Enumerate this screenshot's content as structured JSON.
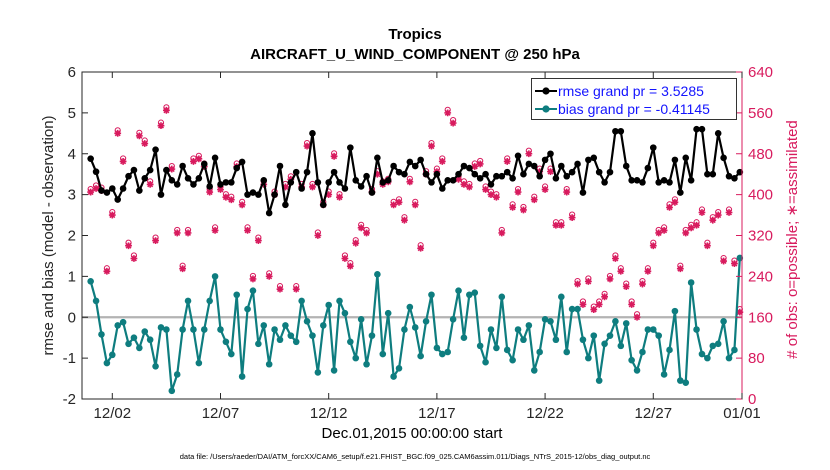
{
  "chart_data": {
    "type": "line",
    "title": "Tropics",
    "subtitle": "AIRCRAFT_U_WIND_COMPONENT @ 250 hPa",
    "xlabel": "Dec.01,2015 00:00:00 start",
    "ylabel_left": "rmse and bias (model - observation)",
    "ylabel_right": "# of obs: o=possible; ∗=assimilated",
    "xlim": [
      0.6,
      31.1
    ],
    "ylim_left": [
      -2,
      6
    ],
    "ylim_right": [
      0,
      640
    ],
    "x_ticks": [
      {
        "x": 2,
        "label": "12/02"
      },
      {
        "x": 7,
        "label": "12/07"
      },
      {
        "x": 12,
        "label": "12/12"
      },
      {
        "x": 17,
        "label": "12/17"
      },
      {
        "x": 22,
        "label": "12/22"
      },
      {
        "x": 27,
        "label": "12/27"
      },
      {
        "x": 32,
        "label": "01/01"
      }
    ],
    "y_ticks_left": [
      "6",
      "5",
      "4",
      "3",
      "2",
      "1",
      "0",
      "-1",
      "-2"
    ],
    "y_ticks_right": [
      "640",
      "560",
      "480",
      "400",
      "320",
      "240",
      "160",
      "80",
      "0"
    ],
    "legend": [
      "rmse grand pr = 3.5285",
      "bias grand pr = -0.41145"
    ],
    "colors": {
      "rmse": "#000000",
      "bias": "#0e7d7f",
      "obs": "#d81b5e",
      "zero_line": "#b3b3b3"
    },
    "x": [
      1.0,
      1.25,
      1.5,
      1.75,
      2.0,
      2.25,
      2.5,
      2.75,
      3.0,
      3.25,
      3.5,
      3.75,
      4.0,
      4.25,
      4.5,
      4.75,
      5.0,
      5.25,
      5.5,
      5.75,
      6.0,
      6.25,
      6.5,
      6.75,
      7.0,
      7.25,
      7.5,
      7.75,
      8.0,
      8.25,
      8.5,
      8.75,
      9.0,
      9.25,
      9.5,
      9.75,
      10.0,
      10.25,
      10.5,
      10.75,
      11.0,
      11.25,
      11.5,
      11.75,
      12.0,
      12.25,
      12.5,
      12.75,
      13.0,
      13.25,
      13.5,
      13.75,
      14.0,
      14.25,
      14.5,
      14.75,
      15.0,
      15.25,
      15.5,
      15.75,
      16.0,
      16.25,
      16.5,
      16.75,
      17.0,
      17.25,
      17.5,
      17.75,
      18.0,
      18.25,
      18.5,
      18.75,
      19.0,
      19.25,
      19.5,
      19.75,
      20.0,
      20.25,
      20.5,
      20.75,
      21.0,
      21.25,
      21.5,
      21.75,
      22.0,
      22.25,
      22.5,
      22.75,
      23.0,
      23.25,
      23.5,
      23.75,
      24.0,
      24.25,
      24.5,
      24.75,
      25.0,
      25.25,
      25.5,
      25.75,
      26.0,
      26.25,
      26.5,
      26.75,
      27.0,
      27.25,
      27.5,
      27.75,
      28.0,
      28.25,
      28.5,
      28.75,
      29.0,
      29.25,
      29.5,
      29.75,
      30.0,
      30.25,
      30.5,
      30.75,
      31.0
    ],
    "series": [
      {
        "name": "rmse grand pr = 3.5285",
        "axis": "left",
        "values": [
          3.88,
          3.56,
          3.1,
          3.05,
          3.15,
          2.88,
          3.15,
          3.45,
          3.6,
          3.1,
          3.4,
          3.6,
          4.1,
          3.0,
          3.6,
          3.35,
          3.25,
          3.7,
          3.4,
          3.25,
          3.4,
          3.75,
          3.2,
          3.9,
          3.25,
          3.3,
          3.3,
          3.65,
          3.8,
          3.0,
          3.05,
          3.0,
          3.35,
          2.55,
          3.0,
          3.7,
          2.75,
          3.3,
          3.55,
          3.15,
          3.55,
          4.5,
          3.3,
          2.75,
          3.3,
          3.55,
          3.3,
          3.15,
          4.15,
          3.35,
          3.2,
          3.45,
          3.05,
          3.9,
          3.3,
          3.35,
          3.7,
          3.55,
          3.5,
          3.8,
          3.7,
          3.85,
          3.5,
          3.3,
          3.5,
          3.15,
          3.35,
          3.35,
          3.5,
          3.7,
          3.65,
          3.5,
          3.4,
          3.5,
          3.25,
          3.45,
          3.45,
          3.55,
          3.4,
          3.95,
          3.5,
          3.75,
          3.7,
          3.45,
          3.85,
          4.0,
          3.4,
          3.7,
          3.45,
          3.55,
          3.75,
          3.05,
          3.85,
          3.9,
          3.55,
          3.3,
          3.55,
          4.55,
          4.55,
          3.7,
          3.35,
          3.35,
          3.3,
          3.65,
          4.15,
          3.3,
          3.35,
          3.3,
          3.85,
          3.05,
          3.9,
          3.35,
          4.6,
          4.6,
          3.5,
          3.5,
          4.5,
          3.9,
          3.45,
          3.4,
          3.55
        ]
      },
      {
        "name": "bias grand pr = -0.41145",
        "axis": "left",
        "values": [
          0.88,
          0.4,
          -0.42,
          -1.12,
          -0.92,
          -0.2,
          -0.12,
          -0.65,
          -0.5,
          -0.75,
          -0.35,
          -0.55,
          -1.2,
          -0.25,
          -0.3,
          -1.8,
          -1.4,
          -0.3,
          0.4,
          -0.3,
          -1.12,
          -0.3,
          0.4,
          1.0,
          -0.3,
          -0.6,
          -0.9,
          0.55,
          -1.45,
          0.2,
          0.65,
          -0.65,
          -0.2,
          -1.15,
          -0.3,
          -0.55,
          -0.2,
          -0.45,
          -0.6,
          0.4,
          -0.1,
          -0.45,
          -1.35,
          -0.2,
          0.3,
          -1.3,
          0.4,
          0.1,
          -0.6,
          -1.0,
          -0.05,
          -1.15,
          -0.45,
          1.05,
          -0.9,
          0.1,
          -1.45,
          -1.25,
          -0.3,
          0.25,
          -0.25,
          -0.95,
          -0.1,
          0.55,
          -0.75,
          -0.9,
          -0.85,
          -0.05,
          0.65,
          -0.5,
          0.55,
          0.6,
          -0.7,
          -1.1,
          -0.3,
          -0.75,
          0.5,
          -0.8,
          -1.05,
          -0.3,
          -0.55,
          -0.2,
          -1.3,
          -0.85,
          -0.05,
          -0.1,
          -0.55,
          0.5,
          -0.85,
          0.2,
          0.2,
          -0.55,
          -1.0,
          -0.45,
          -1.55,
          -0.65,
          -0.45,
          -0.1,
          -0.7,
          -0.15,
          -1.05,
          -1.3,
          -0.85,
          -0.3,
          -0.3,
          -0.45,
          -1.4,
          -0.8,
          0.15,
          -1.55,
          -1.6,
          0.85,
          -0.3,
          -0.9,
          -1.0,
          -0.7,
          -0.65,
          -0.1,
          -1.0,
          -0.8,
          1.45
        ]
      },
      {
        "name": "# of obs possible",
        "axis": "right",
        "marker": "o",
        "values": [
          405,
          412,
          408,
          250,
          360,
          520,
          465,
          300,
          275,
          515,
          500,
          420,
          310,
          535,
          565,
          450,
          325,
          255,
          325,
          465,
          470,
          455,
          405,
          330,
          410,
          395,
          390,
          455,
          380,
          330,
          235,
          310,
          420,
          240,
          400,
          215,
          415,
          430,
          215,
          415,
          495,
          415,
          320,
          380,
          400,
          475,
          395,
          275,
          260,
          305,
          335,
          325,
          405,
          440,
          420,
          425,
          380,
          385,
          350,
          425,
          380,
          295,
          440,
          495,
          445,
          465,
          560,
          540,
          430,
          420,
          415,
          455,
          460,
          410,
          400,
          395,
          325,
          465,
          375,
          405,
          370,
          480,
          390,
          445,
          410,
          445,
          340,
          340,
          405,
          355,
          225,
          185,
          230,
          175,
          185,
          200,
          235,
          275,
          250,
          220,
          185,
          160,
          225,
          250,
          300,
          325,
          330,
          375,
          385,
          255,
          325,
          335,
          340,
          365,
          300,
          350,
          360,
          270,
          365,
          265,
          170
        ]
      },
      {
        "name": "# of obs assimilated",
        "axis": "right",
        "marker": "*",
        "values": [
          405,
          412,
          408,
          250,
          360,
          520,
          465,
          300,
          275,
          515,
          500,
          420,
          310,
          535,
          565,
          450,
          325,
          255,
          325,
          465,
          470,
          455,
          405,
          330,
          410,
          395,
          390,
          455,
          380,
          330,
          235,
          310,
          420,
          240,
          400,
          215,
          415,
          430,
          215,
          415,
          495,
          415,
          320,
          380,
          400,
          475,
          395,
          275,
          260,
          305,
          335,
          325,
          405,
          440,
          420,
          425,
          380,
          385,
          350,
          425,
          380,
          295,
          440,
          495,
          445,
          465,
          560,
          540,
          430,
          420,
          415,
          455,
          460,
          410,
          400,
          395,
          325,
          465,
          375,
          405,
          370,
          480,
          390,
          445,
          410,
          445,
          340,
          340,
          405,
          355,
          225,
          185,
          230,
          175,
          185,
          200,
          235,
          275,
          250,
          220,
          185,
          160,
          225,
          250,
          300,
          325,
          330,
          375,
          385,
          255,
          325,
          335,
          340,
          365,
          300,
          350,
          360,
          270,
          365,
          265,
          170
        ]
      }
    ]
  },
  "footnote": "data file: /Users/raeder/DAI/ATM_forcXX/CAM6_setup/f.e21.FHIST_BGC.f09_025.CAM6assim.011/Diags_NTrS_2015-12/obs_diag_output.nc"
}
